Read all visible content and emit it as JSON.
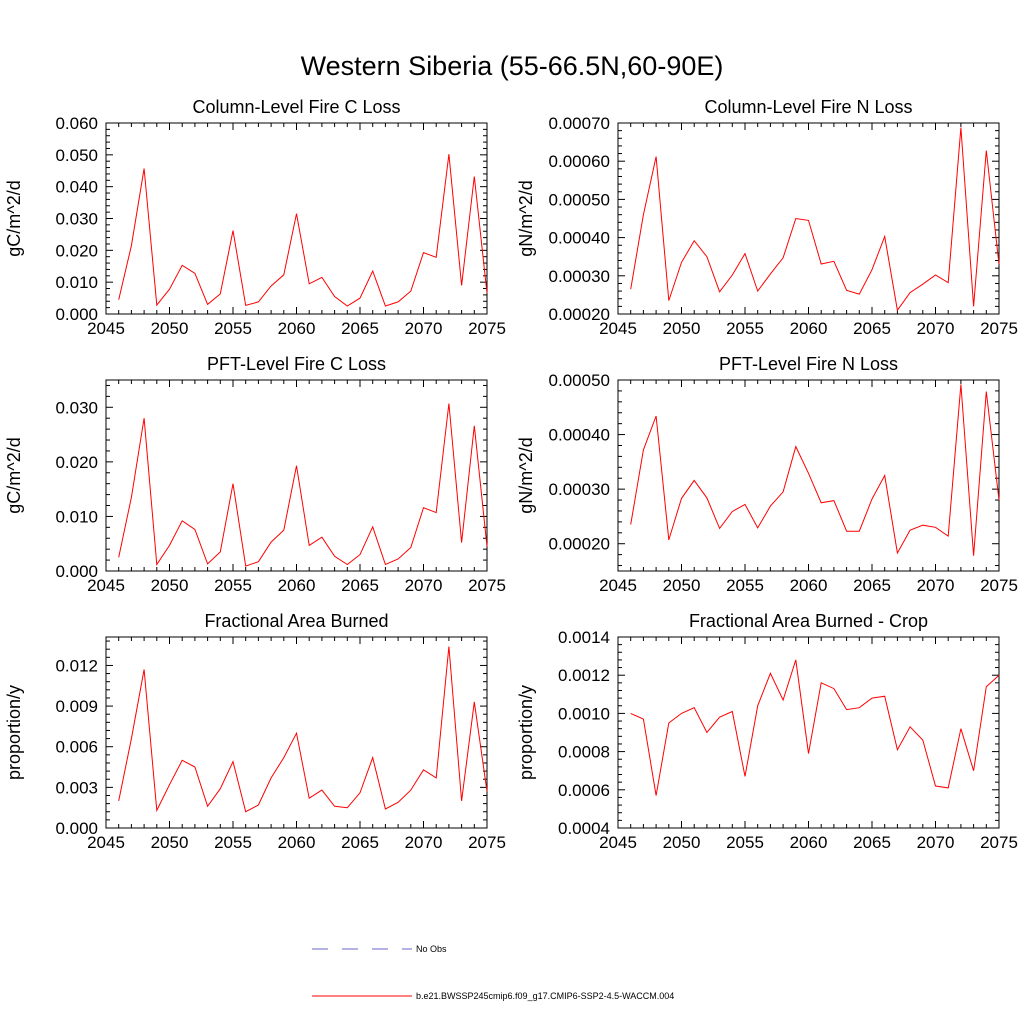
{
  "figure": {
    "title": "Western Siberia (55-66.5N,60-90E)",
    "line_color": "#ff0000",
    "obs_color": "#6666cc"
  },
  "legend": {
    "entries": [
      {
        "label": "No Obs",
        "style": "dashed"
      },
      {
        "label": "b.e21.BWSSP245cmip6.f09_g17.CMIP6-SSP2-4.5-WACCM.004",
        "style": "solid"
      }
    ]
  },
  "chart_data": [
    {
      "type": "line",
      "title": "Column-Level Fire C Loss",
      "ylabel": "gC/m^2/d",
      "xlim": [
        2045,
        2075
      ],
      "ylim": [
        0.0,
        0.06
      ],
      "xticks": [
        2045,
        2050,
        2055,
        2060,
        2065,
        2070,
        2075
      ],
      "xtick_labels": [
        "2045",
        "2050",
        "2055",
        "2060",
        "2065",
        "2070",
        "2075"
      ],
      "yticks": [
        0.0,
        0.01,
        0.02,
        0.03,
        0.04,
        0.05,
        0.06
      ],
      "ytick_labels": [
        "0.000",
        "0.010",
        "0.020",
        "0.030",
        "0.040",
        "0.050",
        "0.060"
      ],
      "grid": false,
      "series": [
        {
          "x": [
            2046,
            2047,
            2048,
            2049,
            2050,
            2051,
            2052,
            2053,
            2054,
            2055,
            2056,
            2057,
            2058,
            2059,
            2060,
            2061,
            2062,
            2063,
            2064,
            2065,
            2066,
            2067,
            2068,
            2069,
            2070,
            2071,
            2072,
            2073,
            2074,
            2075
          ],
          "values": [
            0.0045,
            0.0215,
            0.0457,
            0.0028,
            0.0078,
            0.0153,
            0.0128,
            0.003,
            0.0063,
            0.0262,
            0.0027,
            0.0038,
            0.0088,
            0.0123,
            0.0315,
            0.0095,
            0.0115,
            0.0055,
            0.0025,
            0.005,
            0.0135,
            0.0025,
            0.0038,
            0.0072,
            0.0193,
            0.0178,
            0.0502,
            0.009,
            0.0432,
            0.0065
          ]
        }
      ]
    },
    {
      "type": "line",
      "title": "Column-Level Fire N Loss",
      "ylabel": "gN/m^2/d",
      "xlim": [
        2045,
        2075
      ],
      "ylim": [
        0.0002,
        0.0007
      ],
      "xticks": [
        2045,
        2050,
        2055,
        2060,
        2065,
        2070,
        2075
      ],
      "xtick_labels": [
        "2045",
        "2050",
        "2055",
        "2060",
        "2065",
        "2070",
        "2075"
      ],
      "yticks": [
        0.0002,
        0.0003,
        0.0004,
        0.0005,
        0.0006,
        0.0007
      ],
      "ytick_labels": [
        "0.00020",
        "0.00030",
        "0.00040",
        "0.00050",
        "0.00060",
        "0.00070"
      ],
      "grid": false,
      "series": [
        {
          "x": [
            2046,
            2047,
            2048,
            2049,
            2050,
            2051,
            2052,
            2053,
            2054,
            2055,
            2056,
            2057,
            2058,
            2059,
            2060,
            2061,
            2062,
            2063,
            2064,
            2065,
            2066,
            2067,
            2068,
            2069,
            2070,
            2071,
            2072,
            2073,
            2074,
            2075
          ],
          "values": [
            0.000265,
            0.00046,
            0.000612,
            0.000235,
            0.000335,
            0.000392,
            0.00035,
            0.000258,
            0.000302,
            0.000358,
            0.00026,
            0.000305,
            0.000347,
            0.00045,
            0.000445,
            0.000331,
            0.000338,
            0.000262,
            0.000252,
            0.000316,
            0.000403,
            0.00021,
            0.000256,
            0.000278,
            0.000302,
            0.000282,
            0.000688,
            0.00022,
            0.000628,
            0.00033
          ]
        }
      ]
    },
    {
      "type": "line",
      "title": "PFT-Level Fire C Loss",
      "ylabel": "gC/m^2/d",
      "xlim": [
        2045,
        2075
      ],
      "ylim": [
        0.0,
        0.035
      ],
      "xticks": [
        2045,
        2050,
        2055,
        2060,
        2065,
        2070,
        2075
      ],
      "xtick_labels": [
        "2045",
        "2050",
        "2055",
        "2060",
        "2065",
        "2070",
        "2075"
      ],
      "yticks": [
        0.0,
        0.01,
        0.02,
        0.03
      ],
      "ytick_labels": [
        "0.000",
        "0.010",
        "0.020",
        "0.030"
      ],
      "grid": false,
      "series": [
        {
          "x": [
            2046,
            2047,
            2048,
            2049,
            2050,
            2051,
            2052,
            2053,
            2054,
            2055,
            2056,
            2057,
            2058,
            2059,
            2060,
            2061,
            2062,
            2063,
            2064,
            2065,
            2066,
            2067,
            2068,
            2069,
            2070,
            2071,
            2072,
            2073,
            2074,
            2075
          ],
          "values": [
            0.0025,
            0.0135,
            0.028,
            0.0012,
            0.0047,
            0.0092,
            0.0076,
            0.0013,
            0.0035,
            0.016,
            0.0009,
            0.0017,
            0.0053,
            0.0075,
            0.0193,
            0.0047,
            0.0062,
            0.0027,
            0.0012,
            0.003,
            0.0081,
            0.0012,
            0.0022,
            0.0043,
            0.0116,
            0.0107,
            0.0307,
            0.0052,
            0.0266,
            0.0045
          ]
        }
      ]
    },
    {
      "type": "line",
      "title": "PFT-Level Fire N Loss",
      "ylabel": "gN/m^2/d",
      "xlim": [
        2045,
        2075
      ],
      "ylim": [
        0.00015,
        0.0005
      ],
      "xticks": [
        2045,
        2050,
        2055,
        2060,
        2065,
        2070,
        2075
      ],
      "xtick_labels": [
        "2045",
        "2050",
        "2055",
        "2060",
        "2065",
        "2070",
        "2075"
      ],
      "yticks": [
        0.0002,
        0.0003,
        0.0004,
        0.0005
      ],
      "ytick_labels": [
        "0.00020",
        "0.00030",
        "0.00040",
        "0.00050"
      ],
      "grid": false,
      "series": [
        {
          "x": [
            2046,
            2047,
            2048,
            2049,
            2050,
            2051,
            2052,
            2053,
            2054,
            2055,
            2056,
            2057,
            2058,
            2059,
            2060,
            2061,
            2062,
            2063,
            2064,
            2065,
            2066,
            2067,
            2068,
            2069,
            2070,
            2071,
            2072,
            2073,
            2074,
            2075
          ],
          "values": [
            0.000235,
            0.000372,
            0.000434,
            0.000207,
            0.000283,
            0.000316,
            0.000284,
            0.000228,
            0.000259,
            0.000272,
            0.000229,
            0.000269,
            0.000295,
            0.000378,
            0.000329,
            0.000275,
            0.000279,
            0.000223,
            0.000223,
            0.000282,
            0.000325,
            0.000183,
            0.000225,
            0.000234,
            0.00023,
            0.000214,
            0.000492,
            0.000178,
            0.000479,
            0.00028
          ]
        }
      ]
    },
    {
      "type": "line",
      "title": "Fractional Area Burned",
      "ylabel": "proportion/y",
      "xlim": [
        2045,
        2075
      ],
      "ylim": [
        0.0,
        0.0141
      ],
      "xticks": [
        2045,
        2050,
        2055,
        2060,
        2065,
        2070,
        2075
      ],
      "xtick_labels": [
        "2045",
        "2050",
        "2055",
        "2060",
        "2065",
        "2070",
        "2075"
      ],
      "yticks": [
        0.0,
        0.003,
        0.006,
        0.009,
        0.012
      ],
      "ytick_labels": [
        "0.000",
        "0.003",
        "0.006",
        "0.009",
        "0.012"
      ],
      "grid": false,
      "series": [
        {
          "x": [
            2046,
            2047,
            2048,
            2049,
            2050,
            2051,
            2052,
            2053,
            2054,
            2055,
            2056,
            2057,
            2058,
            2059,
            2060,
            2061,
            2062,
            2063,
            2064,
            2065,
            2066,
            2067,
            2068,
            2069,
            2070,
            2071,
            2072,
            2073,
            2074,
            2075
          ],
          "values": [
            0.002,
            0.0066,
            0.0117,
            0.0013,
            0.0032,
            0.005,
            0.0045,
            0.0016,
            0.0029,
            0.0049,
            0.0012,
            0.0017,
            0.0037,
            0.0052,
            0.007,
            0.0022,
            0.0028,
            0.0016,
            0.0015,
            0.0026,
            0.0052,
            0.0014,
            0.0019,
            0.0028,
            0.0043,
            0.0037,
            0.0134,
            0.002,
            0.0093,
            0.0027
          ]
        }
      ]
    },
    {
      "type": "line",
      "title": "Fractional Area Burned - Crop",
      "ylabel": "proportion/y",
      "xlim": [
        2045,
        2075
      ],
      "ylim": [
        0.0004,
        0.0014
      ],
      "xticks": [
        2045,
        2050,
        2055,
        2060,
        2065,
        2070,
        2075
      ],
      "xtick_labels": [
        "2045",
        "2050",
        "2055",
        "2060",
        "2065",
        "2070",
        "2075"
      ],
      "yticks": [
        0.0004,
        0.0006,
        0.0008,
        0.001,
        0.0012,
        0.0014
      ],
      "ytick_labels": [
        "0.0004",
        "0.0006",
        "0.0008",
        "0.0010",
        "0.0012",
        "0.0014"
      ],
      "grid": false,
      "series": [
        {
          "x": [
            2046,
            2047,
            2048,
            2049,
            2050,
            2051,
            2052,
            2053,
            2054,
            2055,
            2056,
            2057,
            2058,
            2059,
            2060,
            2061,
            2062,
            2063,
            2064,
            2065,
            2066,
            2067,
            2068,
            2069,
            2070,
            2071,
            2072,
            2073,
            2074,
            2075
          ],
          "values": [
            0.001,
            0.00097,
            0.00057,
            0.00095,
            0.001,
            0.00103,
            0.0009,
            0.00098,
            0.00101,
            0.00067,
            0.00104,
            0.00121,
            0.00107,
            0.00128,
            0.00079,
            0.00116,
            0.00113,
            0.00102,
            0.00103,
            0.00108,
            0.00109,
            0.00081,
            0.00093,
            0.00086,
            0.00062,
            0.00061,
            0.00092,
            0.0007,
            0.00114,
            0.0012
          ]
        }
      ]
    }
  ]
}
